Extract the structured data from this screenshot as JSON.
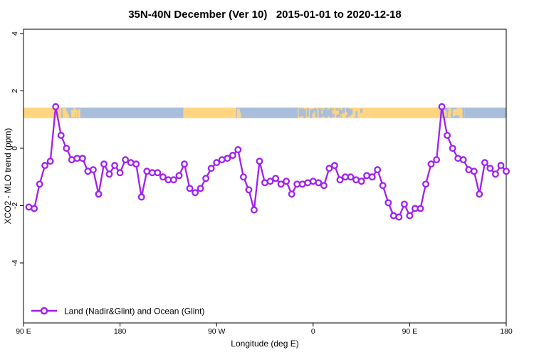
{
  "chart_data": {
    "type": "line",
    "title": "35N-40N December (Ver 10)   2015-01-01 to 2020-12-18",
    "xlabel": "Longitude (deg E)",
    "ylabel": "XCO2 - MLO trend (ppm)",
    "legend_label": "Land (Nadir&Glint) and Ocean (Glint)",
    "xlim": [
      90,
      540
    ],
    "ylim": [
      -6.09,
      4.15
    ],
    "grid": "off",
    "legend_position": "bottom-left-inside",
    "series_color": "#A020F0",
    "marker": "open-circle",
    "x_ticks": [
      {
        "value": 90,
        "label": "90 E"
      },
      {
        "value": 180,
        "label": "180"
      },
      {
        "value": 270,
        "label": "90 W"
      },
      {
        "value": 360,
        "label": "0"
      },
      {
        "value": 450,
        "label": "90 E"
      },
      {
        "value": 540,
        "label": "180"
      }
    ],
    "y_ticks": [
      {
        "value": -4,
        "label": "-4"
      },
      {
        "value": -2,
        "label": "-2"
      },
      {
        "value": 0,
        "label": "0"
      },
      {
        "value": 2,
        "label": "2"
      },
      {
        "value": 4,
        "label": "4"
      }
    ],
    "band": {
      "description": "land/ocean surface-type band",
      "y_range": [
        1.05,
        1.42
      ],
      "land_color": "#FFD580",
      "ocean_color": "#A8BEDC",
      "segments": [
        {
          "from": 90,
          "to": 125,
          "type": "land"
        },
        {
          "from": 125,
          "to": 143,
          "type": "coast",
          "base": "ocean"
        },
        {
          "from": 143,
          "to": 239,
          "type": "ocean"
        },
        {
          "from": 239,
          "to": 288,
          "type": "land"
        },
        {
          "from": 288,
          "to": 293,
          "type": "coast",
          "base": "ocean"
        },
        {
          "from": 293,
          "to": 346,
          "type": "ocean"
        },
        {
          "from": 346,
          "to": 412,
          "type": "coast",
          "base": "land"
        },
        {
          "from": 412,
          "to": 478,
          "type": "land"
        },
        {
          "from": 478,
          "to": 501,
          "type": "coast",
          "base": "ocean"
        },
        {
          "from": 501,
          "to": 540,
          "type": "ocean"
        }
      ]
    },
    "x": [
      95,
      100,
      105,
      110,
      115,
      120,
      125,
      130,
      135,
      140,
      145,
      150,
      155,
      160,
      165,
      170,
      175,
      180,
      185,
      190,
      195,
      200,
      205,
      210,
      215,
      220,
      225,
      230,
      235,
      240,
      245,
      250,
      255,
      260,
      265,
      270,
      275,
      280,
      285,
      290,
      295,
      300,
      305,
      310,
      315,
      320,
      325,
      330,
      335,
      340,
      345,
      350,
      355,
      360,
      365,
      370,
      375,
      380,
      385,
      390,
      395,
      400,
      405,
      410,
      415,
      420,
      425,
      430,
      435,
      440,
      445,
      450,
      455,
      460,
      465,
      470,
      475,
      480,
      485,
      490,
      495,
      500,
      505,
      510,
      515,
      520,
      525,
      530,
      535,
      540
    ],
    "y": [
      -2.05,
      -2.1,
      -1.25,
      -0.6,
      -0.45,
      1.45,
      0.45,
      0,
      -0.4,
      -0.35,
      -0.35,
      -0.8,
      -0.75,
      -1.6,
      -0.55,
      -0.9,
      -0.6,
      -0.85,
      -0.4,
      -0.5,
      -0.55,
      -1.7,
      -0.8,
      -0.85,
      -0.85,
      -1.0,
      -1.1,
      -1.1,
      -0.95,
      -0.55,
      -1.4,
      -1.55,
      -1.4,
      -1.05,
      -0.7,
      -0.5,
      -0.4,
      -0.35,
      -0.25,
      -0.05,
      -1.0,
      -1.45,
      -2.15,
      -0.45,
      -1.2,
      -1.15,
      -1.05,
      -1.25,
      -1.15,
      -1.6,
      -1.25,
      -1.25,
      -1.2,
      -1.15,
      -1.2,
      -1.3,
      -0.7,
      -0.6,
      -1.1,
      -1.0,
      -1.0,
      -1.1,
      -1.15,
      -0.95,
      -1.0,
      -0.75,
      -1.3,
      -1.9,
      -2.35,
      -2.4,
      -1.95,
      -2.35,
      -2.1,
      -2.1,
      -1.25,
      -0.55,
      -0.4,
      1.45,
      0.45,
      0,
      -0.35,
      -0.4,
      -0.75,
      -0.8,
      -1.6,
      -0.5,
      -0.7,
      -0.9,
      -0.6,
      -0.8
    ]
  }
}
